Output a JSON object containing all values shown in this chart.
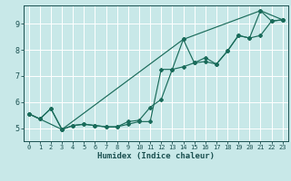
{
  "xlabel": "Humidex (Indice chaleur)",
  "bg_color": "#c8e8e8",
  "grid_color": "#ffffff",
  "line_color": "#1a6b5a",
  "xlim": [
    -0.5,
    23.5
  ],
  "ylim": [
    4.5,
    9.7
  ],
  "xticks": [
    0,
    1,
    2,
    3,
    4,
    5,
    6,
    7,
    8,
    9,
    10,
    11,
    12,
    13,
    14,
    15,
    16,
    17,
    18,
    19,
    20,
    21,
    22,
    23
  ],
  "yticks": [
    5,
    6,
    7,
    8,
    9
  ],
  "line1_x": [
    0,
    1,
    2,
    3,
    4,
    5,
    6,
    7,
    8,
    9,
    10,
    11,
    12,
    13,
    14,
    15,
    16,
    17,
    18,
    19,
    20,
    21,
    22,
    23
  ],
  "line1_y": [
    5.55,
    5.35,
    5.75,
    4.95,
    5.1,
    5.15,
    5.1,
    5.05,
    5.05,
    5.15,
    5.25,
    5.25,
    7.25,
    7.25,
    8.4,
    7.5,
    7.55,
    7.45,
    7.95,
    8.55,
    8.45,
    9.5,
    9.1,
    9.15
  ],
  "line2_x": [
    0,
    1,
    2,
    3,
    4,
    5,
    6,
    7,
    8,
    9,
    10,
    11,
    12,
    13,
    14,
    15,
    16,
    17,
    18,
    19,
    20,
    21,
    22,
    23
  ],
  "line2_y": [
    5.55,
    5.35,
    5.75,
    4.95,
    5.1,
    5.15,
    5.1,
    5.05,
    5.05,
    5.25,
    5.3,
    5.8,
    6.1,
    7.25,
    7.35,
    7.5,
    7.7,
    7.45,
    7.95,
    8.55,
    8.45,
    8.55,
    9.1,
    9.15
  ],
  "line3_x": [
    0,
    3,
    14,
    21,
    23
  ],
  "line3_y": [
    5.55,
    4.95,
    8.4,
    9.5,
    9.15
  ]
}
